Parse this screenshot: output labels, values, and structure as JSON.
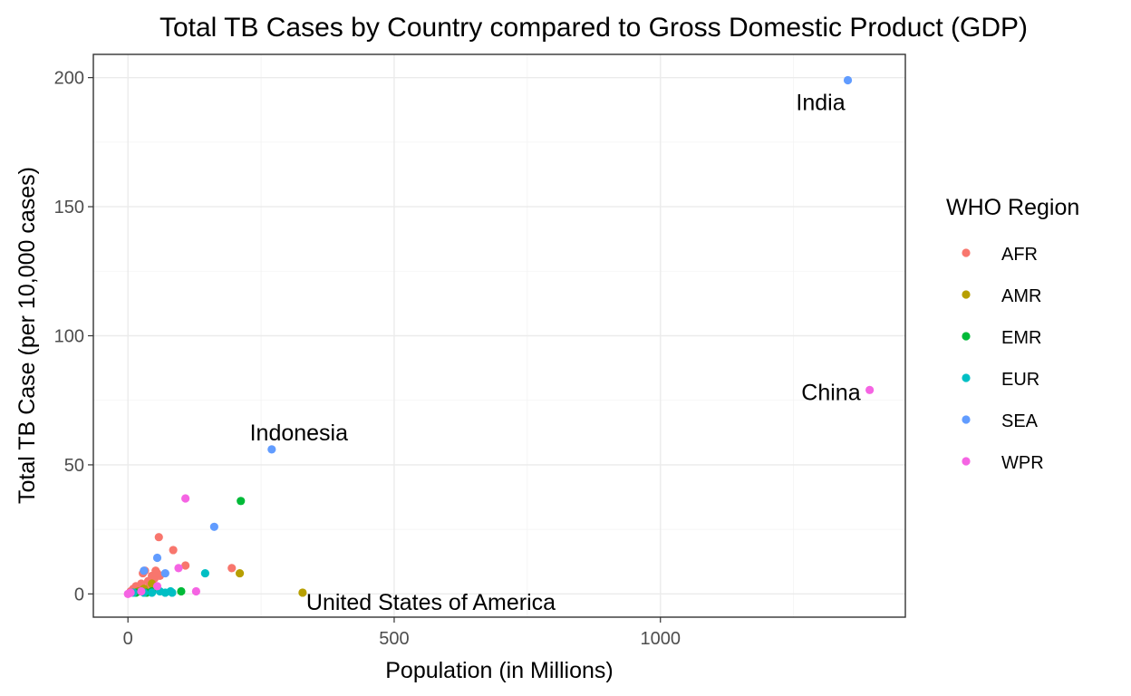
{
  "chart_data": {
    "type": "scatter",
    "title": "Total TB Cases by Country compared to Gross Domestic Product (GDP)",
    "xlabel": "Population (in Millions)",
    "ylabel": "Total TB Case (per 10,000 cases)",
    "xlim": [
      -65,
      1460
    ],
    "ylim": [
      -9,
      209
    ],
    "x_ticks": [
      0,
      500,
      1000
    ],
    "y_ticks": [
      0,
      50,
      100,
      150,
      200
    ],
    "grid": true,
    "legend": {
      "title": "WHO Region",
      "position": "right"
    },
    "series": [
      {
        "name": "AFR",
        "color": "#F8766D",
        "points": [
          [
            5,
            1
          ],
          [
            10,
            2
          ],
          [
            15,
            3
          ],
          [
            20,
            1
          ],
          [
            22,
            2
          ],
          [
            25,
            4
          ],
          [
            28,
            8
          ],
          [
            32,
            9
          ],
          [
            38,
            5
          ],
          [
            45,
            7
          ],
          [
            50,
            6
          ],
          [
            52,
            9
          ],
          [
            55,
            8
          ],
          [
            58,
            22
          ],
          [
            60,
            7
          ],
          [
            85,
            17
          ],
          [
            108,
            11
          ],
          [
            195,
            10
          ],
          [
            40,
            3
          ]
        ]
      },
      {
        "name": "AMR",
        "color": "#B79F00",
        "points": [
          [
            10,
            0.5
          ],
          [
            20,
            1
          ],
          [
            30,
            2
          ],
          [
            45,
            4
          ],
          [
            210,
            8
          ],
          [
            328,
            0.5
          ]
        ]
      },
      {
        "name": "EMR",
        "color": "#00BA38",
        "points": [
          [
            5,
            0.5
          ],
          [
            15,
            0.5
          ],
          [
            25,
            1
          ],
          [
            35,
            0.5
          ],
          [
            45,
            1
          ],
          [
            100,
            1
          ],
          [
            212,
            36
          ]
        ]
      },
      {
        "name": "EUR",
        "color": "#00BFC4",
        "points": [
          [
            10,
            0.5
          ],
          [
            30,
            0.5
          ],
          [
            45,
            0.5
          ],
          [
            60,
            1
          ],
          [
            70,
            0.5
          ],
          [
            80,
            1
          ],
          [
            83,
            0.5
          ],
          [
            145,
            8
          ]
        ]
      },
      {
        "name": "SEA",
        "color": "#619CFF",
        "points": [
          [
            30,
            9
          ],
          [
            55,
            14
          ],
          [
            70,
            8
          ],
          [
            162,
            26
          ],
          [
            270,
            56
          ],
          [
            1352,
            199
          ]
        ]
      },
      {
        "name": "WPR",
        "color": "#F564E3",
        "points": [
          [
            0,
            0
          ],
          [
            5,
            0.5
          ],
          [
            25,
            1
          ],
          [
            55,
            3
          ],
          [
            95,
            10
          ],
          [
            108,
            37
          ],
          [
            128,
            1
          ],
          [
            1393,
            79
          ]
        ]
      }
    ],
    "annotations": [
      {
        "text": "India",
        "x": 1352,
        "y": 199
      },
      {
        "text": "China",
        "x": 1393,
        "y": 79
      },
      {
        "text": "Indonesia",
        "x": 270,
        "y": 56
      },
      {
        "text": "United States of America",
        "x": 328,
        "y": 0.5
      }
    ]
  }
}
